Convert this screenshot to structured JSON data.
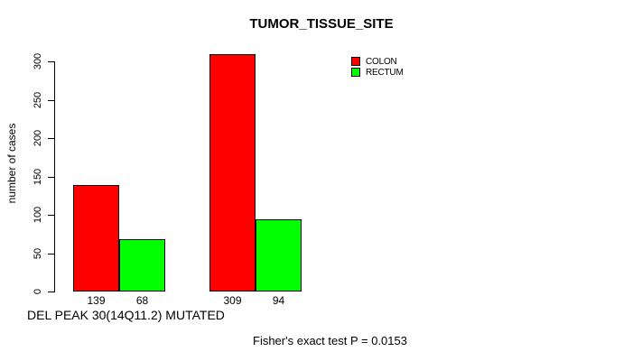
{
  "chart_data": {
    "type": "bar",
    "title": "TUMOR_TISSUE_SITE",
    "ylabel": "number of cases",
    "xlabel": "DEL PEAK 30(14Q11.2) MUTATED",
    "annotation": "Fisher's exact test P = 0.0153",
    "ylim": [
      0,
      300
    ],
    "yticks": [
      "0",
      "50",
      "100",
      "150",
      "200",
      "250",
      "300"
    ],
    "grid": false,
    "legend_position": "top-right",
    "series": [
      {
        "name": "COLON",
        "color": "#ff0000",
        "values": [
          139,
          309
        ],
        "bar_labels": [
          "139",
          "309"
        ]
      },
      {
        "name": "RECTUM",
        "color": "#00ff00",
        "values": [
          68,
          94
        ],
        "bar_labels": [
          "68",
          "94"
        ]
      }
    ],
    "colors": {
      "axis": "#000000",
      "text": "#000000",
      "bar_border": "#000000",
      "background": "#ffffff"
    }
  }
}
